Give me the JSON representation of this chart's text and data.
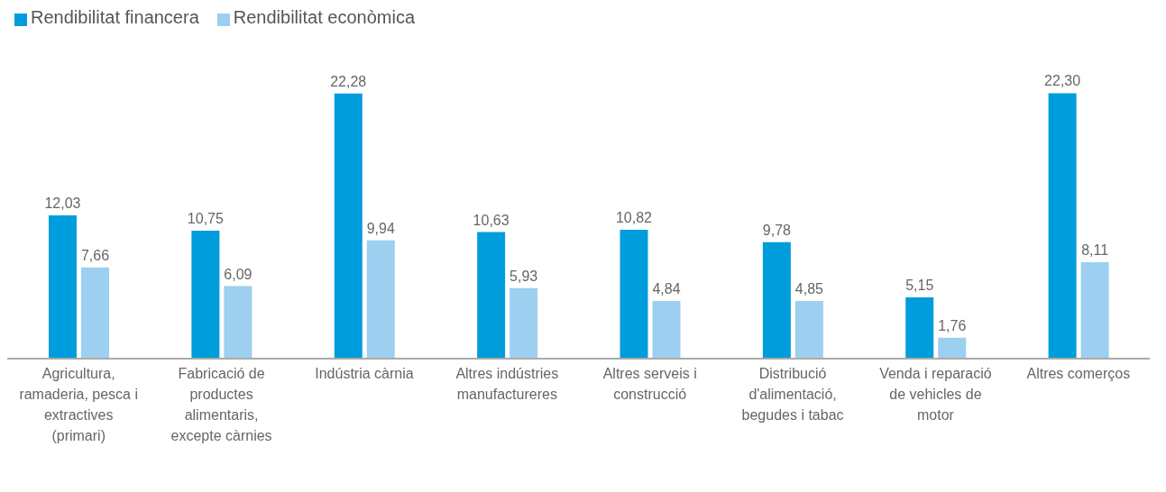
{
  "chart_data": {
    "type": "bar",
    "categories": [
      "Agricultura, ramaderia, pesca i extractives (primari)",
      "Fabricació de productes alimentaris, excepte càrnies",
      "Indústria càrnia",
      "Altres indústries manufactureres",
      "Altres serveis i construcció",
      "Distribució d'alimentació, begudes i tabac",
      "Venda i reparació de vehicles de motor",
      "Altres comerços"
    ],
    "series": [
      {
        "name": "Rendibilitat financera",
        "color": "#009ddc",
        "values": [
          12.03,
          10.75,
          22.28,
          10.63,
          10.82,
          9.78,
          5.15,
          22.3
        ],
        "value_labels": [
          "12,03",
          "10,75",
          "22,28",
          "10,63",
          "10,82",
          "9,78",
          "5,15",
          "22,30"
        ]
      },
      {
        "name": "Rendibilitat econòmica",
        "color": "#9dcff0",
        "values": [
          7.66,
          6.09,
          9.94,
          5.93,
          4.84,
          4.85,
          1.76,
          8.11
        ],
        "value_labels": [
          "7,66",
          "6,09",
          "9,94",
          "5,93",
          "4,84",
          "4,85",
          "1,76",
          "8,11"
        ]
      }
    ],
    "legend": "top left",
    "grid": false
  }
}
